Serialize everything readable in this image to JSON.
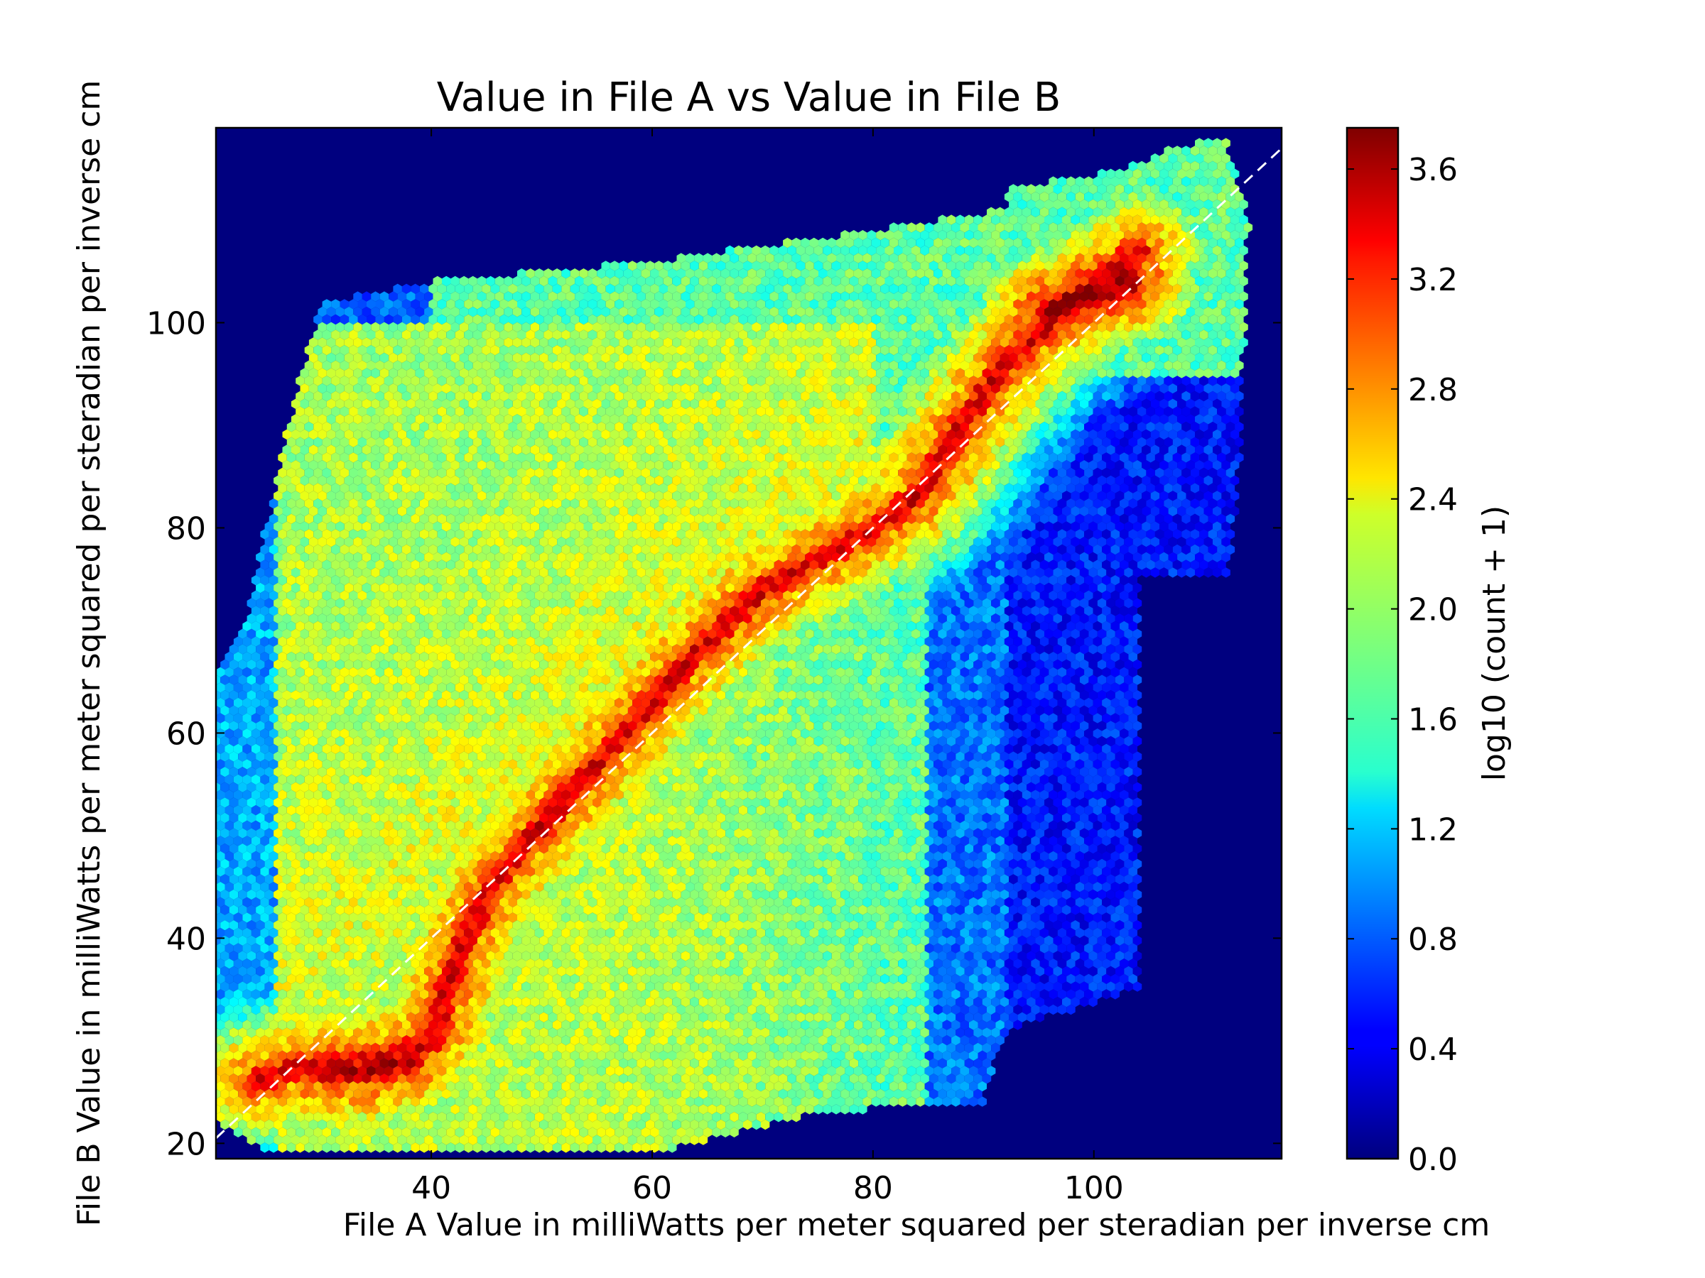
{
  "chart_data": {
    "type": "heatmap",
    "subtype": "hexbin",
    "title": "Value in File A vs Value in File B",
    "xlabel": "File A Value in milliWatts per meter squared per steradian per inverse cm",
    "ylabel": "File B Value in milliWatts per meter squared per steradian per inverse cm",
    "xlim": [
      20.5,
      117
    ],
    "ylim": [
      18.5,
      119
    ],
    "x_ticks": [
      40,
      60,
      80,
      100
    ],
    "y_ticks": [
      20,
      40,
      60,
      80,
      100
    ],
    "grid": false,
    "colormap": "jet",
    "background_color": "#00007f",
    "colorbar": {
      "label": "log10 (count + 1)",
      "range": [
        0.0,
        3.75
      ],
      "ticks": [
        0.0,
        0.4,
        0.8,
        1.2,
        1.6,
        2.0,
        2.4,
        2.8,
        3.2,
        3.6
      ],
      "tick_labels": [
        "0.0",
        "0.4",
        "0.8",
        "1.2",
        "1.6",
        "2.0",
        "2.4",
        "2.8",
        "3.2",
        "3.6"
      ]
    },
    "reference_line": {
      "style": "dashed",
      "color": "#ffffff",
      "x": [
        20.5,
        117
      ],
      "y": [
        20.5,
        117
      ]
    },
    "density_support": {
      "description": "region containing counts, as polygon in data units",
      "polygon": [
        [
          20.5,
          66
        ],
        [
          20.5,
          22
        ],
        [
          25,
          19
        ],
        [
          60,
          19
        ],
        [
          75,
          23
        ],
        [
          90,
          24
        ],
        [
          92,
          31
        ],
        [
          104,
          35
        ],
        [
          104,
          75
        ],
        [
          112,
          75
        ],
        [
          113,
          82
        ],
        [
          114,
          110
        ],
        [
          112,
          118
        ],
        [
          107,
          117
        ],
        [
          103,
          115
        ],
        [
          92,
          113
        ],
        [
          92,
          111
        ],
        [
          80,
          109
        ],
        [
          60,
          106
        ],
        [
          40,
          104
        ],
        [
          30,
          102
        ],
        [
          29,
          98
        ],
        [
          27,
          90
        ],
        [
          25,
          80
        ],
        [
          23,
          70
        ]
      ]
    },
    "density_ridges": [
      {
        "points": [
          [
            24,
            26
          ],
          [
            28,
            27.5
          ],
          [
            32,
            28
          ],
          [
            36,
            28.5
          ],
          [
            40,
            30
          ],
          [
            43,
            40
          ],
          [
            46,
            46
          ],
          [
            50,
            51
          ],
          [
            55,
            57
          ],
          [
            60,
            63
          ],
          [
            65,
            69
          ],
          [
            70,
            74
          ],
          [
            75,
            77
          ],
          [
            80,
            80
          ],
          [
            84,
            83
          ],
          [
            88,
            90
          ],
          [
            92,
            96
          ],
          [
            96,
            100
          ],
          [
            100,
            104
          ],
          [
            104,
            107
          ]
        ],
        "peak": 3.4
      },
      {
        "points": [
          [
            30,
            27
          ],
          [
            34,
            27
          ],
          [
            38,
            28
          ]
        ],
        "peak": 3.55
      },
      {
        "points": [
          [
            96,
            101
          ],
          [
            100,
            103
          ],
          [
            103,
            104
          ]
        ],
        "peak": 3.7
      }
    ]
  }
}
